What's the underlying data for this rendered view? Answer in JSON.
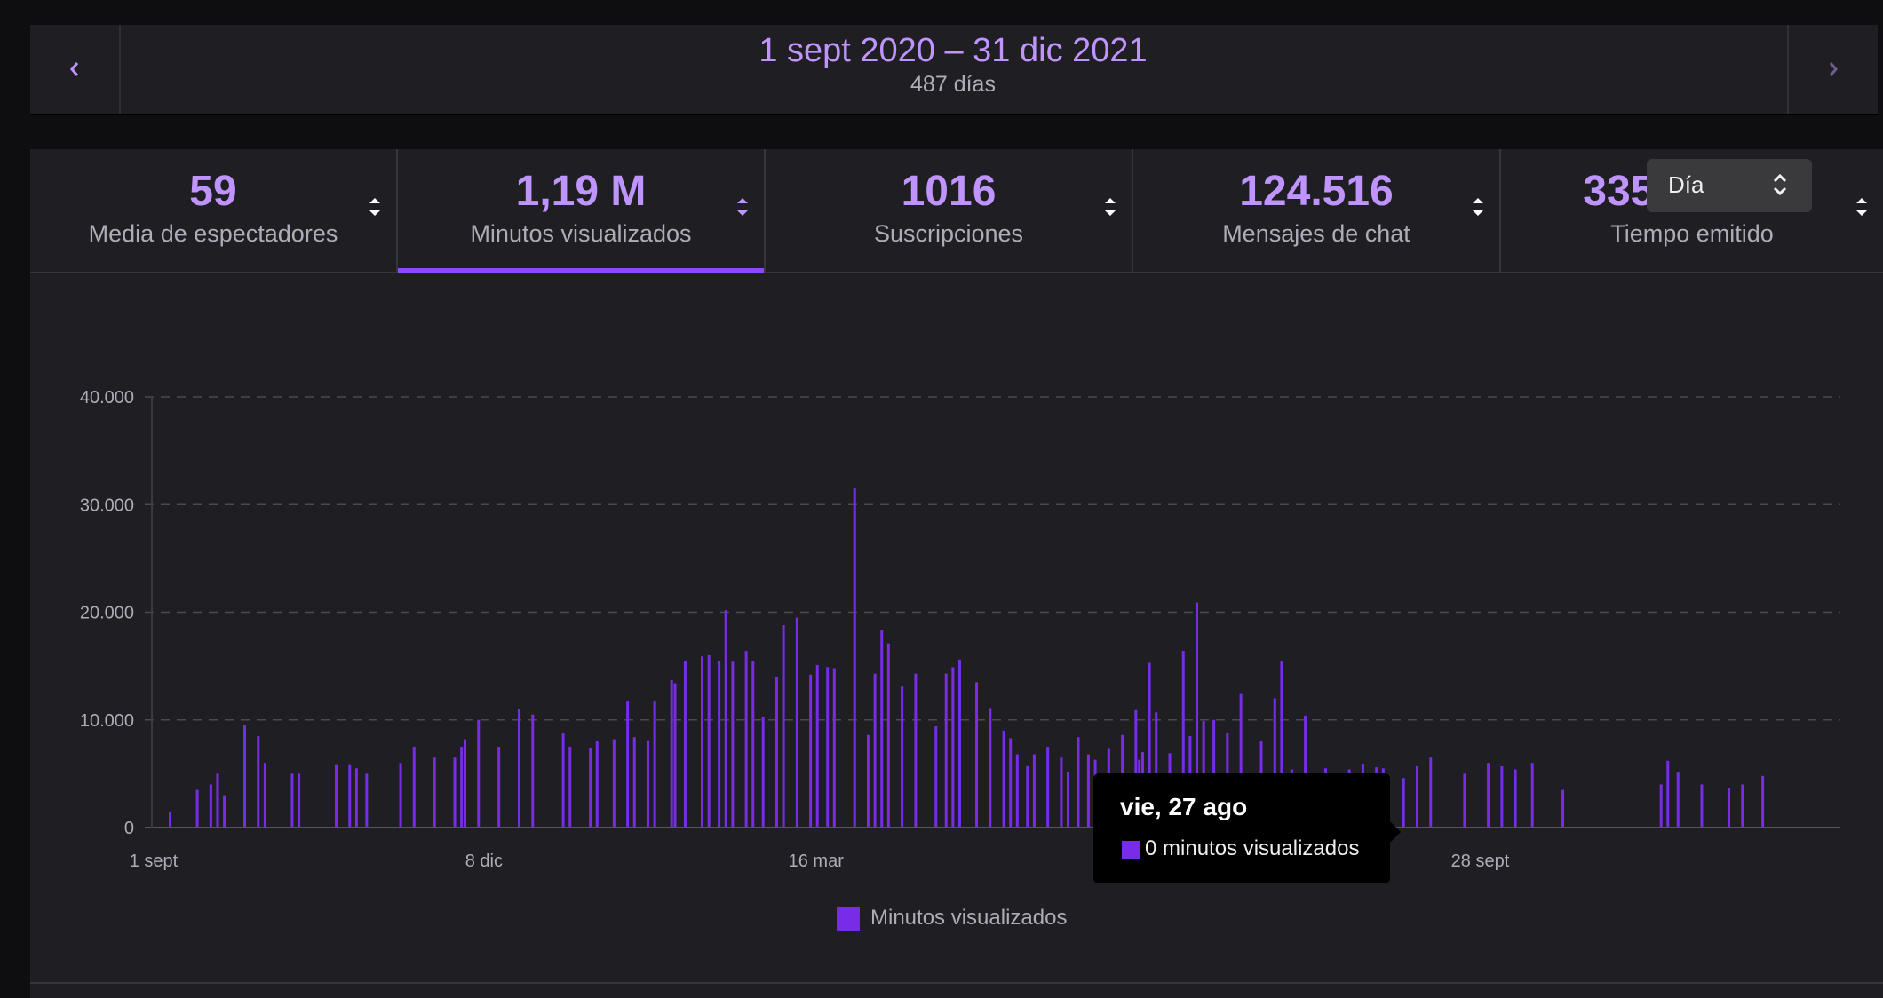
{
  "header": {
    "range_title": "1 sept 2020 – 31 dic 2021",
    "range_days": "487 días"
  },
  "stats": [
    {
      "value": "59",
      "label": "Media de espectadores"
    },
    {
      "value": "1,19 M",
      "label": "Minutos visualizados",
      "active": true
    },
    {
      "value": "1016",
      "label": "Suscripciones"
    },
    {
      "value": "124.516",
      "label": "Mensajes de chat"
    },
    {
      "value": "335 h 23 m",
      "label": "Tiempo emitido"
    }
  ],
  "granularity": {
    "selected": "Día"
  },
  "tooltip": {
    "title": "vie, 27 ago",
    "text": "0 minutos visualizados"
  },
  "colors": {
    "accent": "#bf94ff",
    "bar": "#772ce8",
    "active_tab": "#9147ff",
    "background": "#1f1f23"
  },
  "icons": [
    "chevron-left-icon",
    "chevron-right-icon",
    "sort-icon",
    "up-down-chevron-icon"
  ],
  "chart_data": {
    "type": "bar",
    "series": [
      {
        "name": "Minutos visualizados",
        "x": [
          5,
          13,
          17,
          19,
          21,
          27,
          31,
          33,
          41,
          43,
          54,
          58,
          60,
          63,
          73,
          77,
          83,
          89,
          91,
          92,
          96,
          102,
          108,
          112,
          121,
          123,
          129,
          131,
          136,
          140,
          142,
          146,
          148,
          153,
          154,
          157,
          162,
          164,
          167,
          169,
          171,
          175,
          177,
          180,
          184,
          186,
          190,
          194,
          196,
          199,
          201,
          207,
          211,
          213,
          215,
          217,
          221,
          225,
          231,
          234,
          236,
          238,
          243,
          247,
          251,
          253,
          255,
          258,
          260,
          264,
          268,
          270,
          273,
          276,
          278,
          282,
          286,
          290,
          291,
          292,
          294,
          296,
          300,
          304,
          306,
          308,
          310,
          313,
          317,
          321,
          323,
          327,
          331,
          333,
          336,
          340,
          342,
          346,
          351,
          353,
          357,
          361,
          363,
          369,
          373,
          377,
          387,
          394,
          398,
          402,
          407,
          416,
          445,
          447,
          450,
          457,
          465,
          469,
          475,
          524
        ],
        "values": [
          1500,
          3500,
          4000,
          5000,
          3000,
          9500,
          8500,
          6000,
          5000,
          5000,
          5800,
          5800,
          5500,
          5000,
          6000,
          7500,
          6500,
          6500,
          7500,
          8200,
          10000,
          7500,
          11000,
          10500,
          8800,
          7500,
          7400,
          8000,
          8200,
          11700,
          8400,
          8100,
          11700,
          13700,
          13400,
          15500,
          15900,
          16000,
          15500,
          20200,
          15400,
          16400,
          15500,
          10300,
          14000,
          18800,
          19500,
          14200,
          15100,
          14900,
          14800,
          31500,
          8600,
          14300,
          18300,
          17100,
          13100,
          14300,
          9400,
          14300,
          14900,
          15600,
          13500,
          11100,
          9000,
          8300,
          6800,
          5700,
          6800,
          7500,
          6500,
          5200,
          8400,
          6800,
          6300,
          7300,
          8600,
          10900,
          6300,
          7000,
          15300,
          10700,
          6900,
          16400,
          8500,
          20900,
          9900,
          10000,
          8800,
          12400,
          4500,
          8000,
          12000,
          15500,
          5400,
          10400,
          5000,
          5500,
          4900,
          5400,
          5900,
          5600,
          5500,
          4600,
          5700,
          6500,
          5000,
          6000,
          5700,
          5400,
          6000,
          3500,
          4000,
          6200,
          5100,
          4000,
          3700,
          4000,
          4800,
          3700
        ]
      }
    ],
    "x_tick_labels": [
      "1 sept",
      "8 dic",
      "16 mar",
      "28 sept"
    ],
    "y_ticks": [
      "0",
      "10.000",
      "20.000",
      "30.000",
      "40.000"
    ],
    "ylim": [
      0,
      40000
    ],
    "grid": true,
    "legend": "bottom"
  }
}
